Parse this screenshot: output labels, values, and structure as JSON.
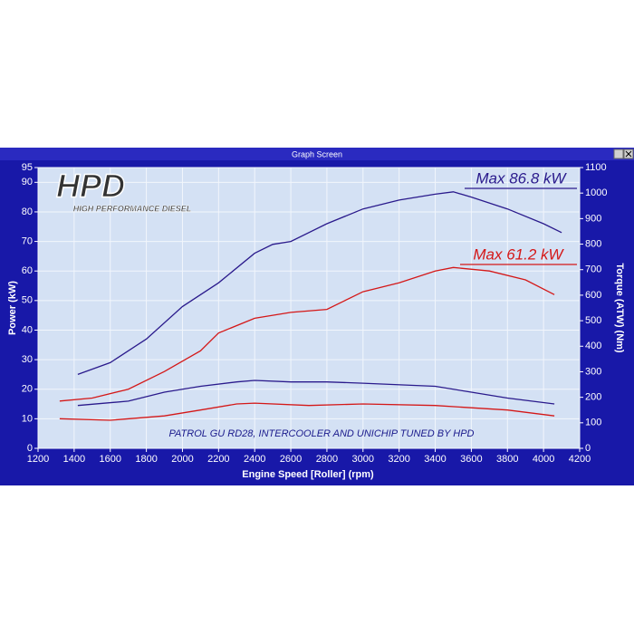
{
  "window_title": "Graph Screen",
  "logo": {
    "text": "HPD",
    "subtitle": "HIGH PERFORMANCE DIESEL"
  },
  "chart_data": {
    "type": "line",
    "xlabel": "Engine Speed [Roller] (rpm)",
    "ylabel": "Power (kW)",
    "y2label": "Torque (ATW) (Nm)",
    "xlim": [
      1200,
      4200
    ],
    "xticks": [
      1200,
      1400,
      1600,
      1800,
      2000,
      2200,
      2400,
      2600,
      2800,
      3000,
      3200,
      3400,
      3600,
      3800,
      4000,
      4200
    ],
    "ylim": [
      0,
      95
    ],
    "yticks": [
      0,
      10,
      20,
      30,
      40,
      50,
      60,
      70,
      80,
      90,
      95
    ],
    "y2lim": [
      0,
      1100
    ],
    "y2ticks": [
      0,
      100,
      200,
      300,
      400,
      500,
      600,
      700,
      800,
      900,
      1000,
      1100
    ],
    "grid": true,
    "series": [
      {
        "color": "#2a1a8c",
        "x": [
          1420,
          1600,
          1800,
          2000,
          2200,
          2400,
          2500,
          2600,
          2800,
          3000,
          3200,
          3400,
          3500,
          3600,
          3800,
          4000,
          4100
        ],
        "values": [
          25,
          29,
          37,
          48,
          56,
          66,
          69,
          70,
          76,
          81,
          84,
          86,
          86.8,
          85,
          81,
          76,
          73
        ]
      },
      {
        "color": "#d41818",
        "x": [
          1320,
          1500,
          1700,
          1900,
          2100,
          2200,
          2400,
          2600,
          2800,
          2900,
          3000,
          3200,
          3400,
          3500,
          3700,
          3900,
          4060
        ],
        "values": [
          16,
          17,
          20,
          26,
          33,
          39,
          44,
          46,
          47,
          50,
          53,
          56,
          60,
          61.2,
          60,
          57,
          52
        ]
      },
      {
        "color": "#2a1a8c",
        "axis": "y2",
        "x": [
          1420,
          1700,
          1900,
          2100,
          2300,
          2400,
          2600,
          2800,
          3000,
          3400,
          3600,
          3800,
          4060
        ],
        "values": [
          168,
          185,
          220,
          243,
          260,
          266,
          260,
          260,
          255,
          243,
          220,
          197,
          174
        ]
      },
      {
        "color": "#d41818",
        "axis": "y2",
        "x": [
          1320,
          1600,
          1900,
          2100,
          2300,
          2400,
          2700,
          3000,
          3400,
          3800,
          4060
        ],
        "values": [
          116,
          110,
          127,
          150,
          174,
          177,
          168,
          174,
          168,
          150,
          127
        ]
      }
    ],
    "annotations": [
      {
        "text": "Max 86.8 kW",
        "color": "#2a1a8c"
      },
      {
        "text": "Max 61.2 kW",
        "color": "#d41818"
      },
      {
        "text": "PATROL GU RD28, INTERCOOLER AND UNICHIP TUNED BY HPD",
        "color": "#1a1a8c"
      }
    ]
  }
}
